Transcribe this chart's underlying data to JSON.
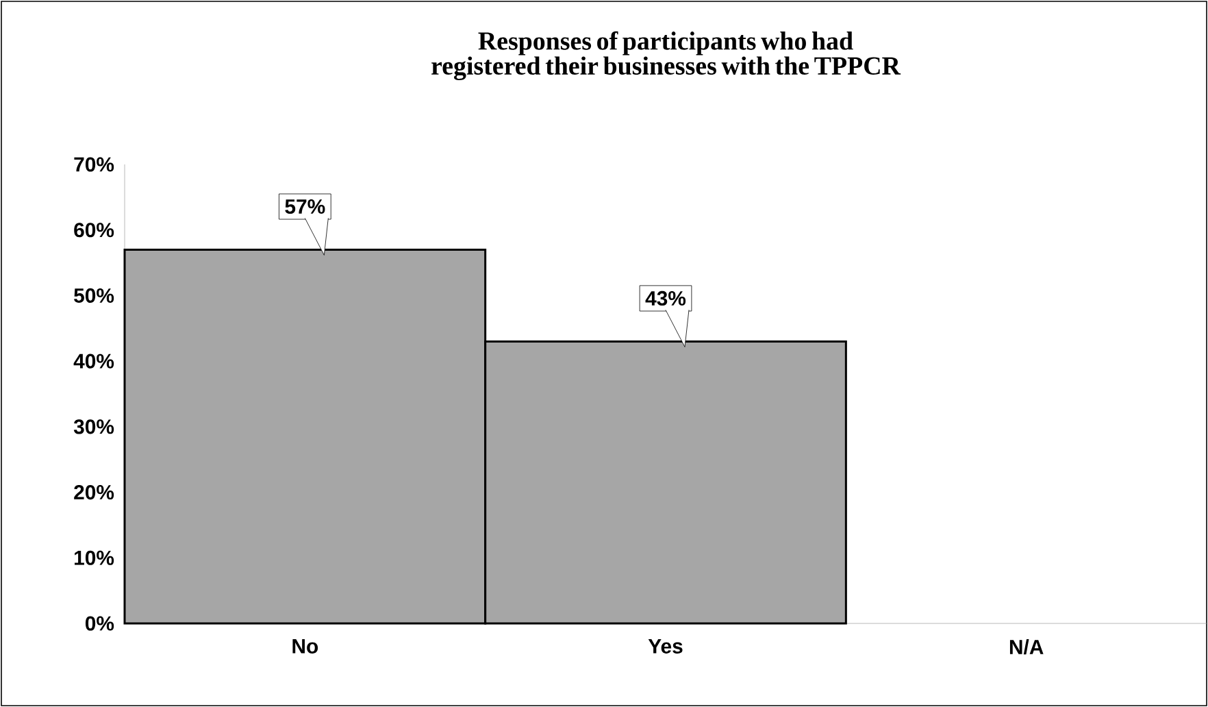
{
  "chart_data": {
    "type": "bar",
    "title": "Responses of participants who had registered their businesses with the TPPCR",
    "categories": [
      "No",
      "Yes",
      "N/A"
    ],
    "values": [
      57,
      43,
      null
    ],
    "value_labels": [
      "57%",
      "43%",
      null
    ],
    "color": "#a6a6a6",
    "ylim": [
      0,
      70
    ],
    "yticks": [
      {
        "value": 0,
        "label": "0%"
      },
      {
        "value": 10,
        "label": "10%"
      },
      {
        "value": 20,
        "label": "20%"
      },
      {
        "value": 30,
        "label": "30%"
      },
      {
        "value": 40,
        "label": "40%"
      },
      {
        "value": 50,
        "label": "50%"
      },
      {
        "value": 60,
        "label": "60%"
      },
      {
        "value": 70,
        "label": "70%"
      }
    ]
  }
}
